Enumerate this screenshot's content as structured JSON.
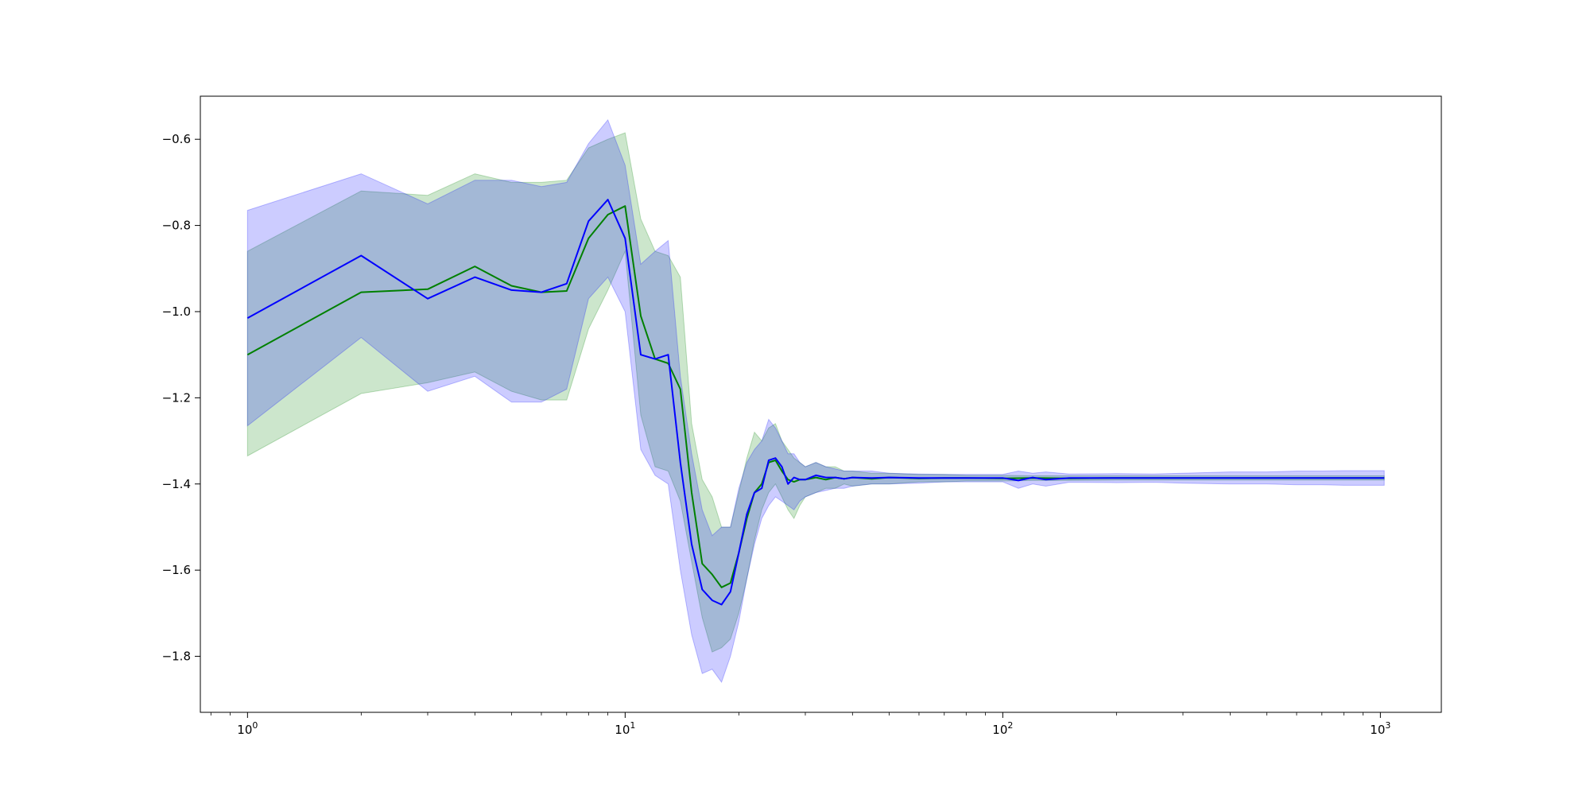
{
  "chart_data": {
    "type": "line",
    "title": "",
    "xlabel": "",
    "ylabel": "",
    "xscale": "log",
    "xlim": [
      0.75,
      1450
    ],
    "ylim": [
      -1.93,
      -0.5
    ],
    "grid": false,
    "legend": "none",
    "x_ticks": [
      {
        "value": 1,
        "base": "10",
        "exp": "0"
      },
      {
        "value": 10,
        "base": "10",
        "exp": "1"
      },
      {
        "value": 100,
        "base": "10",
        "exp": "2"
      },
      {
        "value": 1000,
        "base": "10",
        "exp": "3"
      }
    ],
    "y_ticks": [
      {
        "value": -0.6,
        "label": "−0.6"
      },
      {
        "value": -0.8,
        "label": "−0.8"
      },
      {
        "value": -1.0,
        "label": "−1.0"
      },
      {
        "value": -1.2,
        "label": "−1.2"
      },
      {
        "value": -1.4,
        "label": "−1.4"
      },
      {
        "value": -1.6,
        "label": "−1.6"
      },
      {
        "value": -1.8,
        "label": "−1.8"
      }
    ],
    "series": [
      {
        "color": "#008000",
        "band_color": "#008000",
        "x": [
          1,
          2,
          3,
          4,
          5,
          6,
          7,
          8,
          9,
          10,
          11,
          12,
          13,
          14,
          15,
          16,
          17,
          18,
          19,
          20,
          21,
          22,
          23,
          24,
          25,
          26,
          27,
          28,
          29,
          30,
          32,
          34,
          36,
          38,
          40,
          45,
          50,
          60,
          70,
          80,
          100,
          120,
          150,
          200,
          250,
          300,
          400,
          500,
          600,
          700,
          800,
          1000,
          1024
        ],
        "y": [
          -1.1,
          -0.955,
          -0.948,
          -0.895,
          -0.94,
          -0.955,
          -0.952,
          -0.83,
          -0.775,
          -0.755,
          -1.01,
          -1.11,
          -1.12,
          -1.18,
          -1.42,
          -1.585,
          -1.61,
          -1.64,
          -1.63,
          -1.56,
          -1.48,
          -1.42,
          -1.4,
          -1.35,
          -1.345,
          -1.37,
          -1.39,
          -1.395,
          -1.39,
          -1.39,
          -1.385,
          -1.39,
          -1.385,
          -1.388,
          -1.385,
          -1.388,
          -1.385,
          -1.387,
          -1.386,
          -1.386,
          -1.387,
          -1.386,
          -1.387,
          -1.386,
          -1.386,
          -1.386,
          -1.386,
          -1.386,
          -1.386,
          -1.386,
          -1.386,
          -1.386,
          -1.386
        ],
        "lower": [
          -1.335,
          -1.19,
          -1.165,
          -1.14,
          -1.185,
          -1.205,
          -1.205,
          -1.04,
          -0.95,
          -0.86,
          -1.24,
          -1.36,
          -1.37,
          -1.44,
          -1.58,
          -1.71,
          -1.79,
          -1.78,
          -1.76,
          -1.7,
          -1.62,
          -1.53,
          -1.46,
          -1.42,
          -1.4,
          -1.43,
          -1.46,
          -1.48,
          -1.45,
          -1.43,
          -1.42,
          -1.41,
          -1.41,
          -1.4,
          -1.405,
          -1.4,
          -1.4,
          -1.395,
          -1.395,
          -1.393,
          -1.393,
          -1.392,
          -1.392,
          -1.391,
          -1.391,
          -1.391,
          -1.391,
          -1.391,
          -1.391,
          -1.391,
          -1.391,
          -1.391,
          -1.391
        ],
        "upper": [
          -0.86,
          -0.72,
          -0.73,
          -0.68,
          -0.7,
          -0.7,
          -0.695,
          -0.62,
          -0.6,
          -0.585,
          -0.785,
          -0.86,
          -0.87,
          -0.92,
          -1.26,
          -1.39,
          -1.43,
          -1.5,
          -1.5,
          -1.42,
          -1.34,
          -1.28,
          -1.3,
          -1.27,
          -1.26,
          -1.3,
          -1.32,
          -1.34,
          -1.35,
          -1.36,
          -1.35,
          -1.36,
          -1.36,
          -1.37,
          -1.37,
          -1.375,
          -1.375,
          -1.378,
          -1.378,
          -1.38,
          -1.38,
          -1.381,
          -1.381,
          -1.381,
          -1.381,
          -1.381,
          -1.381,
          -1.381,
          -1.381,
          -1.381,
          -1.381,
          -1.381,
          -1.381
        ]
      },
      {
        "color": "#0000ff",
        "band_color": "#0000ff",
        "x": [
          1,
          2,
          3,
          4,
          5,
          6,
          7,
          8,
          9,
          10,
          11,
          12,
          13,
          14,
          15,
          16,
          17,
          18,
          19,
          20,
          21,
          22,
          23,
          24,
          25,
          26,
          27,
          28,
          29,
          30,
          32,
          34,
          36,
          38,
          40,
          45,
          50,
          60,
          70,
          80,
          100,
          110,
          120,
          130,
          150,
          200,
          250,
          300,
          400,
          500,
          600,
          700,
          800,
          1000,
          1024
        ],
        "y": [
          -1.015,
          -0.87,
          -0.97,
          -0.92,
          -0.95,
          -0.955,
          -0.935,
          -0.79,
          -0.74,
          -0.83,
          -1.1,
          -1.11,
          -1.1,
          -1.35,
          -1.54,
          -1.645,
          -1.67,
          -1.68,
          -1.65,
          -1.56,
          -1.47,
          -1.42,
          -1.41,
          -1.345,
          -1.34,
          -1.36,
          -1.4,
          -1.385,
          -1.39,
          -1.39,
          -1.38,
          -1.385,
          -1.385,
          -1.388,
          -1.385,
          -1.386,
          -1.385,
          -1.386,
          -1.386,
          -1.386,
          -1.386,
          -1.392,
          -1.385,
          -1.39,
          -1.386,
          -1.386,
          -1.386,
          -1.386,
          -1.386,
          -1.386,
          -1.386,
          -1.386,
          -1.386,
          -1.386,
          -1.386
        ],
        "lower": [
          -1.265,
          -1.06,
          -1.185,
          -1.15,
          -1.21,
          -1.21,
          -1.18,
          -0.97,
          -0.92,
          -1.0,
          -1.32,
          -1.38,
          -1.4,
          -1.6,
          -1.75,
          -1.84,
          -1.83,
          -1.86,
          -1.8,
          -1.72,
          -1.62,
          -1.54,
          -1.48,
          -1.45,
          -1.43,
          -1.44,
          -1.45,
          -1.46,
          -1.44,
          -1.43,
          -1.42,
          -1.415,
          -1.41,
          -1.41,
          -1.405,
          -1.4,
          -1.4,
          -1.398,
          -1.395,
          -1.395,
          -1.395,
          -1.41,
          -1.4,
          -1.405,
          -1.396,
          -1.397,
          -1.396,
          -1.398,
          -1.4,
          -1.4,
          -1.402,
          -1.402,
          -1.403,
          -1.403,
          -1.403
        ],
        "upper": [
          -0.765,
          -0.68,
          -0.75,
          -0.695,
          -0.695,
          -0.71,
          -0.7,
          -0.61,
          -0.555,
          -0.66,
          -0.89,
          -0.86,
          -0.835,
          -1.15,
          -1.33,
          -1.46,
          -1.52,
          -1.5,
          -1.5,
          -1.41,
          -1.35,
          -1.32,
          -1.3,
          -1.25,
          -1.27,
          -1.3,
          -1.33,
          -1.33,
          -1.35,
          -1.36,
          -1.35,
          -1.36,
          -1.365,
          -1.37,
          -1.37,
          -1.37,
          -1.375,
          -1.377,
          -1.378,
          -1.378,
          -1.378,
          -1.37,
          -1.375,
          -1.372,
          -1.377,
          -1.376,
          -1.377,
          -1.375,
          -1.372,
          -1.372,
          -1.37,
          -1.37,
          -1.369,
          -1.369,
          -1.369
        ]
      }
    ]
  }
}
